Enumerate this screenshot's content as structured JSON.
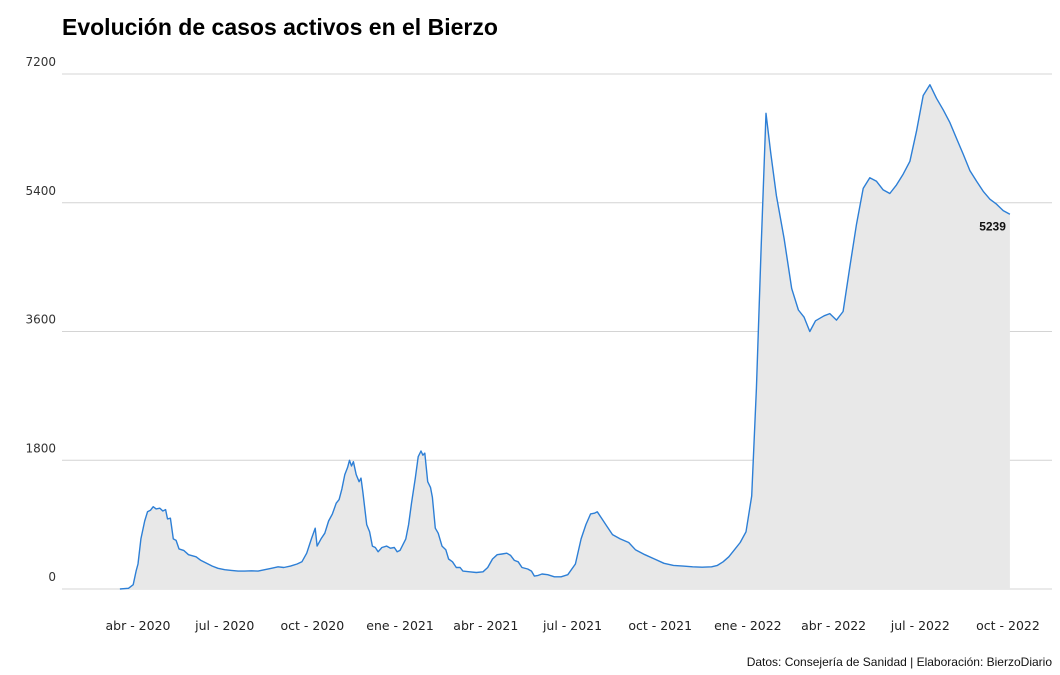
{
  "title": "Evolución de casos activos en el Bierzo",
  "source": "Datos: Consejería de Sanidad | Elaboración: BierzoDiario",
  "colors": {
    "line": "#2d7fd6",
    "area": "#e8e8e8",
    "grid": "#d4d4d4"
  },
  "chart_data": {
    "type": "area",
    "title": "Evolución de casos activos en el Bierzo",
    "xlabel": "",
    "ylabel": "",
    "ylim": [
      0,
      7200
    ],
    "yticks": [
      0,
      1800,
      3600,
      5400,
      7200
    ],
    "ytick_labels": [
      "0",
      "1800",
      "3600",
      "5400",
      "7200"
    ],
    "xlim": [
      "2020-03-01",
      "2022-10-31"
    ],
    "xticks": [
      "2020-04-01",
      "2020-07-01",
      "2020-10-01",
      "2021-01-01",
      "2021-04-01",
      "2021-07-01",
      "2021-10-01",
      "2022-01-01",
      "2022-04-01",
      "2022-07-01",
      "2022-10-01"
    ],
    "xtick_labels": [
      "abr - 2020",
      "jul - 2020",
      "oct - 2020",
      "ene - 2021",
      "abr - 2021",
      "jul - 2021",
      "oct - 2021",
      "ene - 2022",
      "abr - 2022",
      "jul - 2022",
      "oct - 2022"
    ],
    "grid": "horizontal",
    "end_label": "5239",
    "series": [
      {
        "points": [
          [
            "2020-03-13",
            0
          ],
          [
            "2020-03-22",
            10
          ],
          [
            "2020-03-27",
            60
          ],
          [
            "2020-03-30",
            250
          ],
          [
            "2020-04-01",
            350
          ],
          [
            "2020-04-04",
            700
          ],
          [
            "2020-04-08",
            950
          ],
          [
            "2020-04-11",
            1080
          ],
          [
            "2020-04-14",
            1100
          ],
          [
            "2020-04-17",
            1150
          ],
          [
            "2020-04-20",
            1120
          ],
          [
            "2020-04-24",
            1130
          ],
          [
            "2020-04-27",
            1090
          ],
          [
            "2020-04-30",
            1110
          ],
          [
            "2020-05-02",
            980
          ],
          [
            "2020-05-05",
            990
          ],
          [
            "2020-05-08",
            700
          ],
          [
            "2020-05-11",
            680
          ],
          [
            "2020-05-14",
            560
          ],
          [
            "2020-05-19",
            540
          ],
          [
            "2020-05-24",
            480
          ],
          [
            "2020-06-01",
            450
          ],
          [
            "2020-06-06",
            400
          ],
          [
            "2020-06-12",
            360
          ],
          [
            "2020-06-18",
            320
          ],
          [
            "2020-06-24",
            290
          ],
          [
            "2020-07-01",
            270
          ],
          [
            "2020-07-08",
            260
          ],
          [
            "2020-07-15",
            250
          ],
          [
            "2020-07-22",
            250
          ],
          [
            "2020-07-29",
            255
          ],
          [
            "2020-08-05",
            250
          ],
          [
            "2020-08-12",
            270
          ],
          [
            "2020-08-19",
            290
          ],
          [
            "2020-08-26",
            310
          ],
          [
            "2020-09-01",
            300
          ],
          [
            "2020-09-08",
            320
          ],
          [
            "2020-09-15",
            350
          ],
          [
            "2020-09-20",
            380
          ],
          [
            "2020-09-25",
            500
          ],
          [
            "2020-09-30",
            700
          ],
          [
            "2020-10-04",
            850
          ],
          [
            "2020-10-06",
            600
          ],
          [
            "2020-10-10",
            700
          ],
          [
            "2020-10-14",
            780
          ],
          [
            "2020-10-18",
            950
          ],
          [
            "2020-10-22",
            1050
          ],
          [
            "2020-10-26",
            1200
          ],
          [
            "2020-10-29",
            1250
          ],
          [
            "2020-11-01",
            1400
          ],
          [
            "2020-11-04",
            1600
          ],
          [
            "2020-11-07",
            1700
          ],
          [
            "2020-11-09",
            1800
          ],
          [
            "2020-11-11",
            1720
          ],
          [
            "2020-11-13",
            1780
          ],
          [
            "2020-11-16",
            1600
          ],
          [
            "2020-11-19",
            1500
          ],
          [
            "2020-11-21",
            1550
          ],
          [
            "2020-11-23",
            1350
          ],
          [
            "2020-11-27",
            900
          ],
          [
            "2020-11-30",
            800
          ],
          [
            "2020-12-03",
            600
          ],
          [
            "2020-12-06",
            580
          ],
          [
            "2020-12-09",
            520
          ],
          [
            "2020-12-13",
            580
          ],
          [
            "2020-12-18",
            600
          ],
          [
            "2020-12-22",
            570
          ],
          [
            "2020-12-26",
            580
          ],
          [
            "2020-12-29",
            520
          ],
          [
            "2021-01-01",
            540
          ],
          [
            "2021-01-04",
            620
          ],
          [
            "2021-01-07",
            700
          ],
          [
            "2021-01-10",
            900
          ],
          [
            "2021-01-13",
            1200
          ],
          [
            "2021-01-17",
            1550
          ],
          [
            "2021-01-20",
            1850
          ],
          [
            "2021-01-23",
            1930
          ],
          [
            "2021-01-25",
            1870
          ],
          [
            "2021-01-27",
            1900
          ],
          [
            "2021-01-30",
            1500
          ],
          [
            "2021-02-02",
            1420
          ],
          [
            "2021-02-04",
            1280
          ],
          [
            "2021-02-07",
            850
          ],
          [
            "2021-02-10",
            780
          ],
          [
            "2021-02-14",
            600
          ],
          [
            "2021-02-18",
            550
          ],
          [
            "2021-02-21",
            420
          ],
          [
            "2021-02-25",
            380
          ],
          [
            "2021-03-01",
            300
          ],
          [
            "2021-03-05",
            300
          ],
          [
            "2021-03-08",
            250
          ],
          [
            "2021-03-15",
            240
          ],
          [
            "2021-03-22",
            230
          ],
          [
            "2021-03-29",
            240
          ],
          [
            "2021-04-03",
            300
          ],
          [
            "2021-04-08",
            420
          ],
          [
            "2021-04-13",
            480
          ],
          [
            "2021-04-18",
            490
          ],
          [
            "2021-04-23",
            500
          ],
          [
            "2021-04-27",
            470
          ],
          [
            "2021-05-01",
            400
          ],
          [
            "2021-05-05",
            380
          ],
          [
            "2021-05-09",
            300
          ],
          [
            "2021-05-15",
            280
          ],
          [
            "2021-05-19",
            250
          ],
          [
            "2021-05-22",
            180
          ],
          [
            "2021-05-26",
            190
          ],
          [
            "2021-05-30",
            210
          ],
          [
            "2021-06-05",
            200
          ],
          [
            "2021-06-12",
            170
          ],
          [
            "2021-06-19",
            170
          ],
          [
            "2021-06-26",
            200
          ],
          [
            "2021-07-04",
            350
          ],
          [
            "2021-07-10",
            700
          ],
          [
            "2021-07-15",
            900
          ],
          [
            "2021-07-20",
            1050
          ],
          [
            "2021-07-24",
            1060
          ],
          [
            "2021-07-27",
            1080
          ],
          [
            "2021-07-31",
            1000
          ],
          [
            "2021-08-06",
            880
          ],
          [
            "2021-08-12",
            760
          ],
          [
            "2021-08-20",
            700
          ],
          [
            "2021-08-29",
            650
          ],
          [
            "2021-09-05",
            550
          ],
          [
            "2021-09-15",
            480
          ],
          [
            "2021-09-25",
            420
          ],
          [
            "2021-10-05",
            360
          ],
          [
            "2021-10-15",
            330
          ],
          [
            "2021-10-25",
            320
          ],
          [
            "2021-11-04",
            310
          ],
          [
            "2021-11-14",
            305
          ],
          [
            "2021-11-24",
            310
          ],
          [
            "2021-11-30",
            330
          ],
          [
            "2021-12-06",
            380
          ],
          [
            "2021-12-12",
            450
          ],
          [
            "2021-12-18",
            550
          ],
          [
            "2021-12-24",
            650
          ],
          [
            "2021-12-30",
            800
          ],
          [
            "2022-01-05",
            1300
          ],
          [
            "2022-01-10",
            2800
          ],
          [
            "2022-01-15",
            4800
          ],
          [
            "2022-01-20",
            6650
          ],
          [
            "2022-01-25",
            6100
          ],
          [
            "2022-01-31",
            5500
          ],
          [
            "2022-02-08",
            4900
          ],
          [
            "2022-02-16",
            4200
          ],
          [
            "2022-02-23",
            3900
          ],
          [
            "2022-03-01",
            3800
          ],
          [
            "2022-03-07",
            3600
          ],
          [
            "2022-03-13",
            3750
          ],
          [
            "2022-03-22",
            3820
          ],
          [
            "2022-03-28",
            3850
          ],
          [
            "2022-04-04",
            3760
          ],
          [
            "2022-04-11",
            3880
          ],
          [
            "2022-04-18",
            4500
          ],
          [
            "2022-04-25",
            5100
          ],
          [
            "2022-05-02",
            5600
          ],
          [
            "2022-05-09",
            5750
          ],
          [
            "2022-05-16",
            5700
          ],
          [
            "2022-05-23",
            5580
          ],
          [
            "2022-05-30",
            5530
          ],
          [
            "2022-06-06",
            5650
          ],
          [
            "2022-06-13",
            5800
          ],
          [
            "2022-06-20",
            5980
          ],
          [
            "2022-06-27",
            6400
          ],
          [
            "2022-07-04",
            6900
          ],
          [
            "2022-07-11",
            7050
          ],
          [
            "2022-07-18",
            6860
          ],
          [
            "2022-07-25",
            6700
          ],
          [
            "2022-08-01",
            6520
          ],
          [
            "2022-08-08",
            6300
          ],
          [
            "2022-08-15",
            6080
          ],
          [
            "2022-08-22",
            5850
          ],
          [
            "2022-08-29",
            5700
          ],
          [
            "2022-09-05",
            5560
          ],
          [
            "2022-09-12",
            5450
          ],
          [
            "2022-09-19",
            5380
          ],
          [
            "2022-09-26",
            5290
          ],
          [
            "2022-10-03",
            5239
          ]
        ]
      }
    ]
  }
}
